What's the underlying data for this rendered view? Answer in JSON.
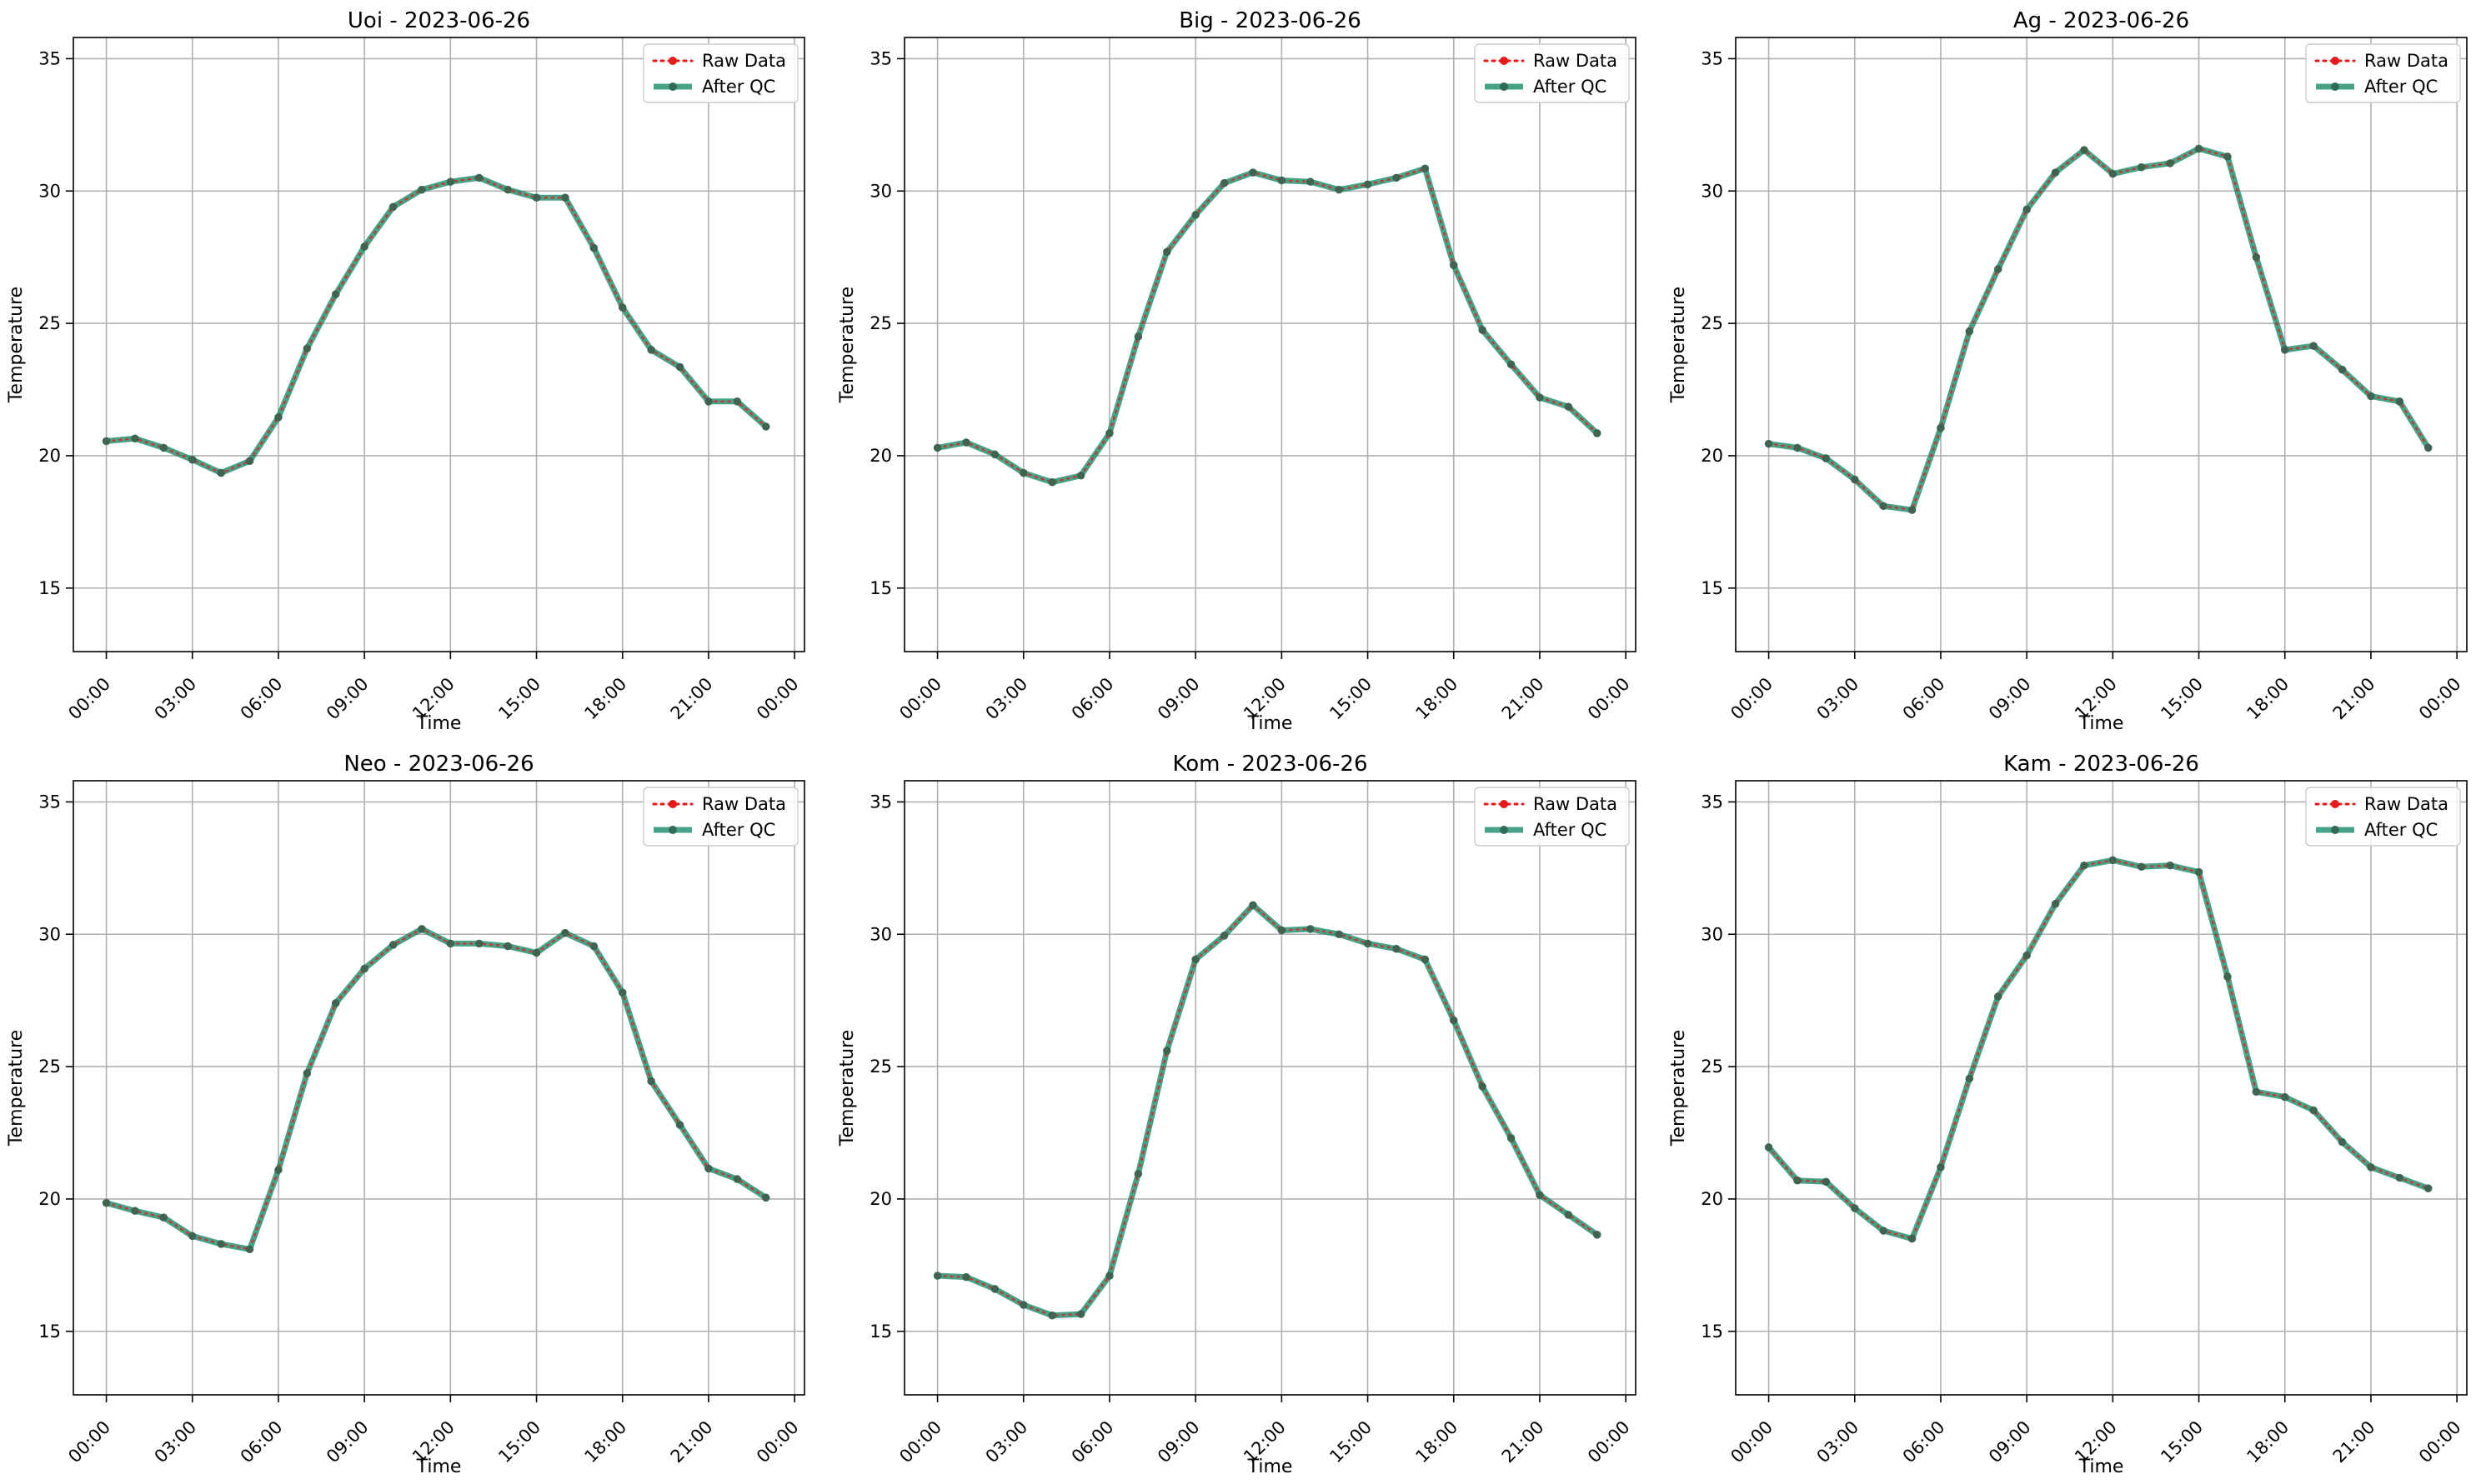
{
  "figure": {
    "colors": {
      "raw": "#e8181b",
      "qc": "#1f8f6d",
      "qc_marker": "#2f6b55",
      "grid": "#b0b0b0"
    }
  },
  "chart_data": [
    {
      "type": "line",
      "title": "Uoi - 2023-06-26",
      "xlabel": "Time",
      "ylabel": "Temperature",
      "x": [
        "00:00",
        "01:00",
        "02:00",
        "03:00",
        "04:00",
        "05:00",
        "06:00",
        "07:00",
        "08:00",
        "09:00",
        "10:00",
        "11:00",
        "12:00",
        "13:00",
        "14:00",
        "15:00",
        "16:00",
        "17:00",
        "18:00",
        "19:00",
        "20:00",
        "21:00",
        "22:00",
        "23:00"
      ],
      "x_ticks": [
        "00:00",
        "03:00",
        "06:00",
        "09:00",
        "12:00",
        "15:00",
        "18:00",
        "21:00",
        "00:00"
      ],
      "y_ticks": [
        15,
        20,
        25,
        30,
        35
      ],
      "ylim": [
        12.6,
        35.8
      ],
      "grid": true,
      "legend": "top-right",
      "series": [
        {
          "name": "Raw Data",
          "values": [
            20.55,
            20.65,
            20.3,
            19.85,
            19.35,
            19.8,
            21.45,
            24.05,
            26.1,
            27.9,
            29.4,
            30.05,
            30.35,
            30.5,
            30.05,
            29.75,
            29.75,
            27.85,
            25.6,
            24.0,
            23.35,
            22.05,
            22.05,
            21.1
          ]
        },
        {
          "name": "After QC",
          "values": [
            20.55,
            20.65,
            20.3,
            19.85,
            19.35,
            19.8,
            21.45,
            24.05,
            26.1,
            27.9,
            29.4,
            30.05,
            30.35,
            30.5,
            30.05,
            29.75,
            29.75,
            27.85,
            25.6,
            24.0,
            23.35,
            22.05,
            22.05,
            21.1
          ]
        }
      ]
    },
    {
      "type": "line",
      "title": "Big - 2023-06-26",
      "xlabel": "Time",
      "ylabel": "Temperature",
      "x": [
        "00:00",
        "01:00",
        "02:00",
        "03:00",
        "04:00",
        "05:00",
        "06:00",
        "07:00",
        "08:00",
        "09:00",
        "10:00",
        "11:00",
        "12:00",
        "13:00",
        "14:00",
        "15:00",
        "16:00",
        "17:00",
        "18:00",
        "19:00",
        "20:00",
        "21:00",
        "22:00",
        "23:00"
      ],
      "x_ticks": [
        "00:00",
        "03:00",
        "06:00",
        "09:00",
        "12:00",
        "15:00",
        "18:00",
        "21:00",
        "00:00"
      ],
      "y_ticks": [
        15,
        20,
        25,
        30,
        35
      ],
      "ylim": [
        12.6,
        35.8
      ],
      "grid": true,
      "legend": "top-right",
      "series": [
        {
          "name": "Raw Data",
          "values": [
            20.3,
            20.5,
            20.05,
            19.35,
            19.0,
            19.25,
            20.85,
            24.5,
            27.7,
            29.1,
            30.3,
            30.7,
            30.4,
            30.35,
            30.05,
            30.25,
            30.5,
            30.85,
            27.2,
            24.75,
            23.45,
            22.2,
            21.85,
            20.85
          ]
        },
        {
          "name": "After QC",
          "values": [
            20.3,
            20.5,
            20.05,
            19.35,
            19.0,
            19.25,
            20.85,
            24.5,
            27.7,
            29.1,
            30.3,
            30.7,
            30.4,
            30.35,
            30.05,
            30.25,
            30.5,
            30.85,
            27.2,
            24.75,
            23.45,
            22.2,
            21.85,
            20.85
          ]
        }
      ]
    },
    {
      "type": "line",
      "title": "Ag - 2023-06-26",
      "xlabel": "Time",
      "ylabel": "Temperature",
      "x": [
        "00:00",
        "01:00",
        "02:00",
        "03:00",
        "04:00",
        "05:00",
        "06:00",
        "07:00",
        "08:00",
        "09:00",
        "10:00",
        "11:00",
        "12:00",
        "13:00",
        "14:00",
        "15:00",
        "16:00",
        "17:00",
        "18:00",
        "19:00",
        "20:00",
        "21:00",
        "22:00",
        "23:00"
      ],
      "x_ticks": [
        "00:00",
        "03:00",
        "06:00",
        "09:00",
        "12:00",
        "15:00",
        "18:00",
        "21:00",
        "00:00"
      ],
      "y_ticks": [
        15,
        20,
        25,
        30,
        35
      ],
      "ylim": [
        12.6,
        35.8
      ],
      "grid": true,
      "legend": "top-right",
      "series": [
        {
          "name": "Raw Data",
          "values": [
            20.45,
            20.3,
            19.9,
            19.1,
            18.1,
            17.95,
            21.05,
            24.7,
            27.05,
            29.3,
            30.7,
            31.55,
            30.65,
            30.9,
            31.05,
            31.6,
            31.3,
            27.5,
            24.0,
            24.15,
            23.25,
            22.25,
            22.05,
            20.3
          ]
        },
        {
          "name": "After QC",
          "values": [
            20.45,
            20.3,
            19.9,
            19.1,
            18.1,
            17.95,
            21.05,
            24.7,
            27.05,
            29.3,
            30.7,
            31.55,
            30.65,
            30.9,
            31.05,
            31.6,
            31.3,
            27.5,
            24.0,
            24.15,
            23.25,
            22.25,
            22.05,
            20.3
          ]
        }
      ]
    },
    {
      "type": "line",
      "title": "Neo - 2023-06-26",
      "xlabel": "Time",
      "ylabel": "Temperature",
      "x": [
        "00:00",
        "01:00",
        "02:00",
        "03:00",
        "04:00",
        "05:00",
        "06:00",
        "07:00",
        "08:00",
        "09:00",
        "10:00",
        "11:00",
        "12:00",
        "13:00",
        "14:00",
        "15:00",
        "16:00",
        "17:00",
        "18:00",
        "19:00",
        "20:00",
        "21:00",
        "22:00",
        "23:00"
      ],
      "x_ticks": [
        "00:00",
        "03:00",
        "06:00",
        "09:00",
        "12:00",
        "15:00",
        "18:00",
        "21:00",
        "00:00"
      ],
      "y_ticks": [
        15,
        20,
        25,
        30,
        35
      ],
      "ylim": [
        12.6,
        35.8
      ],
      "grid": true,
      "legend": "top-right",
      "series": [
        {
          "name": "Raw Data",
          "values": [
            19.85,
            19.55,
            19.3,
            18.6,
            18.3,
            18.1,
            21.1,
            24.75,
            27.4,
            28.7,
            29.6,
            30.2,
            29.65,
            29.65,
            29.55,
            29.3,
            30.05,
            29.55,
            27.8,
            24.45,
            22.8,
            21.15,
            20.75,
            20.05
          ]
        },
        {
          "name": "After QC",
          "values": [
            19.85,
            19.55,
            19.3,
            18.6,
            18.3,
            18.1,
            21.1,
            24.75,
            27.4,
            28.7,
            29.6,
            30.2,
            29.65,
            29.65,
            29.55,
            29.3,
            30.05,
            29.55,
            27.8,
            24.45,
            22.8,
            21.15,
            20.75,
            20.05
          ]
        }
      ]
    },
    {
      "type": "line",
      "title": "Kom - 2023-06-26",
      "xlabel": "Time",
      "ylabel": "Temperature",
      "x": [
        "00:00",
        "01:00",
        "02:00",
        "03:00",
        "04:00",
        "05:00",
        "06:00",
        "07:00",
        "08:00",
        "09:00",
        "10:00",
        "11:00",
        "12:00",
        "13:00",
        "14:00",
        "15:00",
        "16:00",
        "17:00",
        "18:00",
        "19:00",
        "20:00",
        "21:00",
        "22:00",
        "23:00"
      ],
      "x_ticks": [
        "00:00",
        "03:00",
        "06:00",
        "09:00",
        "12:00",
        "15:00",
        "18:00",
        "21:00",
        "00:00"
      ],
      "y_ticks": [
        15,
        20,
        25,
        30,
        35
      ],
      "ylim": [
        12.6,
        35.8
      ],
      "grid": true,
      "legend": "top-right",
      "series": [
        {
          "name": "Raw Data",
          "values": [
            17.1,
            17.05,
            16.6,
            16.0,
            15.6,
            15.65,
            17.1,
            20.95,
            25.6,
            29.05,
            29.95,
            31.1,
            30.15,
            30.2,
            30.0,
            29.65,
            29.45,
            29.05,
            26.75,
            24.25,
            22.3,
            20.15,
            19.4,
            18.65
          ]
        },
        {
          "name": "After QC",
          "values": [
            17.1,
            17.05,
            16.6,
            16.0,
            15.6,
            15.65,
            17.1,
            20.95,
            25.6,
            29.05,
            29.95,
            31.1,
            30.15,
            30.2,
            30.0,
            29.65,
            29.45,
            29.05,
            26.75,
            24.25,
            22.3,
            20.15,
            19.4,
            18.65
          ]
        }
      ]
    },
    {
      "type": "line",
      "title": "Kam - 2023-06-26",
      "xlabel": "Time",
      "ylabel": "Temperature",
      "x": [
        "00:00",
        "01:00",
        "02:00",
        "03:00",
        "04:00",
        "05:00",
        "06:00",
        "07:00",
        "08:00",
        "09:00",
        "10:00",
        "11:00",
        "12:00",
        "13:00",
        "14:00",
        "15:00",
        "16:00",
        "17:00",
        "18:00",
        "19:00",
        "20:00",
        "21:00",
        "22:00",
        "23:00"
      ],
      "x_ticks": [
        "00:00",
        "03:00",
        "06:00",
        "09:00",
        "12:00",
        "15:00",
        "18:00",
        "21:00",
        "00:00"
      ],
      "y_ticks": [
        15,
        20,
        25,
        30,
        35
      ],
      "ylim": [
        12.6,
        35.8
      ],
      "grid": true,
      "legend": "top-right",
      "series": [
        {
          "name": "Raw Data",
          "values": [
            21.95,
            20.7,
            20.65,
            19.65,
            18.8,
            18.5,
            21.2,
            24.55,
            27.65,
            29.2,
            31.15,
            32.6,
            32.8,
            32.55,
            32.6,
            32.35,
            28.4,
            24.05,
            23.85,
            23.35,
            22.15,
            21.2,
            20.8,
            20.4
          ]
        },
        {
          "name": "After QC",
          "values": [
            21.95,
            20.7,
            20.65,
            19.65,
            18.8,
            18.5,
            21.2,
            24.55,
            27.65,
            29.2,
            31.15,
            32.6,
            32.8,
            32.55,
            32.6,
            32.35,
            28.4,
            24.05,
            23.85,
            23.35,
            22.15,
            21.2,
            20.8,
            20.4
          ]
        }
      ]
    }
  ]
}
